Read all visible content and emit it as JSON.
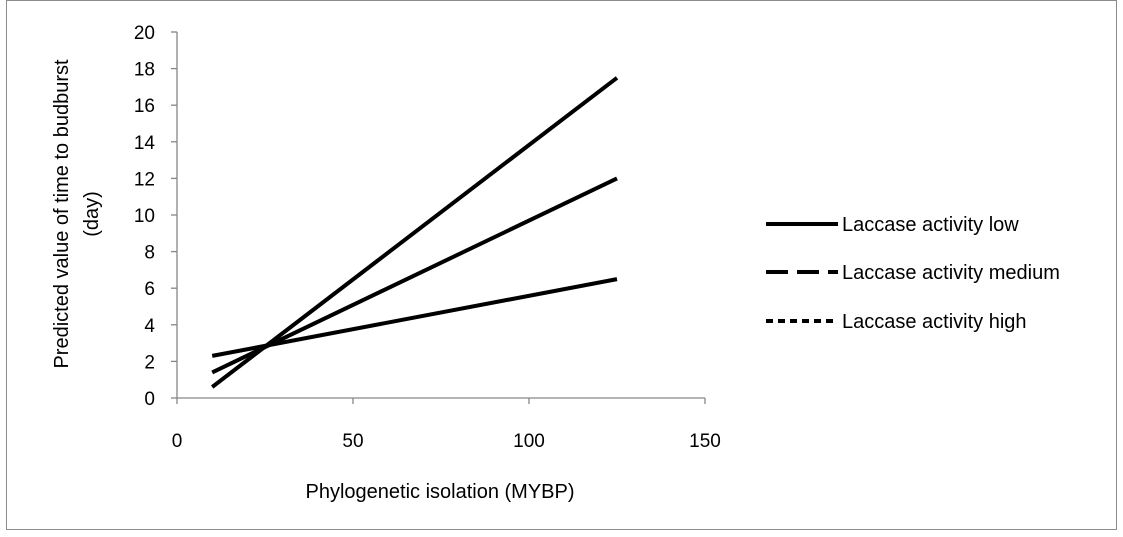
{
  "chart_data": {
    "type": "line",
    "title": "",
    "xlabel": "Phylogenetic isolation (MYBP)",
    "ylabel_lines": [
      "Predicted value of time to budburst",
      "(day)"
    ],
    "xlim": [
      0,
      150
    ],
    "ylim": [
      0,
      20
    ],
    "xticks": [
      0,
      50,
      100,
      150
    ],
    "yticks": [
      0,
      2,
      4,
      6,
      8,
      10,
      12,
      14,
      16,
      18,
      20
    ],
    "xtick_labels": [
      "0",
      "50",
      "100",
      "150"
    ],
    "ytick_labels": [
      "0",
      "2",
      "4",
      "6",
      "8",
      "10",
      "12",
      "14",
      "16",
      "18",
      "20"
    ],
    "grid": false,
    "legend_position": "right",
    "series": [
      {
        "name": "Laccase activity low",
        "dash": "solid",
        "x": [
          10,
          125
        ],
        "y": [
          0.6,
          17.5
        ]
      },
      {
        "name": "Laccase activity medium",
        "dash": "long-dash",
        "x": [
          10,
          125
        ],
        "y": [
          1.4,
          12.0
        ]
      },
      {
        "name": "Laccase activity high",
        "dash": "short-dash",
        "x": [
          10,
          125
        ],
        "y": [
          2.3,
          6.5
        ]
      }
    ],
    "line_color": "#000000",
    "axis_color": "#868686"
  }
}
